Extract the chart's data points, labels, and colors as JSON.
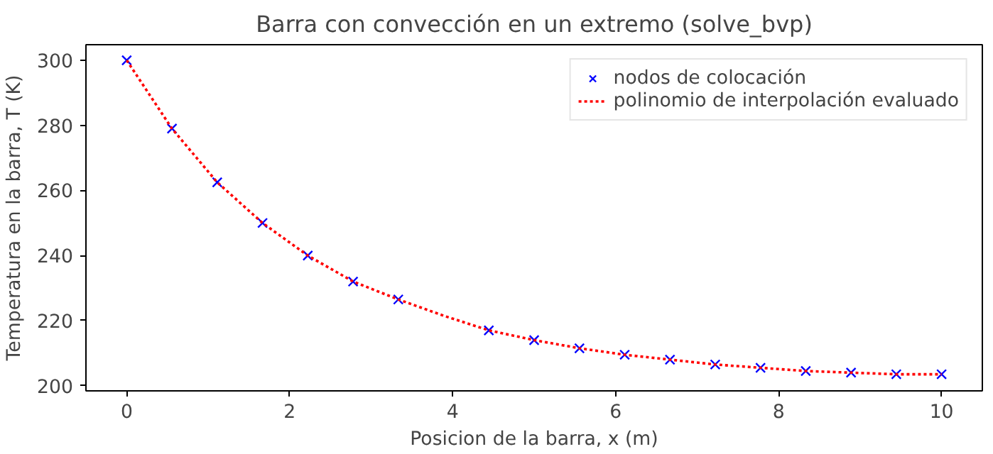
{
  "chart_data": {
    "type": "line",
    "title": "Barra con convección en un extremo (solve_bvp)",
    "xlabel": "Posicion de la barra, x (m)",
    "ylabel": "Temperatura en la barra, T (K)",
    "xlim": [
      -0.5,
      10.5
    ],
    "ylim": [
      198.4,
      304.8
    ],
    "xticks": [
      0,
      2,
      4,
      6,
      8,
      10
    ],
    "yticks": [
      200,
      220,
      240,
      260,
      280,
      300
    ],
    "grid": false,
    "legend": "top right",
    "series": [
      {
        "name": "nodos de colocación",
        "type": "scatter",
        "marker": "cross",
        "color": "#0000ff",
        "x": [
          0,
          0.556,
          1.111,
          1.667,
          2.222,
          2.778,
          3.333,
          4.444,
          5.0,
          5.556,
          6.111,
          6.667,
          7.222,
          7.778,
          8.333,
          8.889,
          9.444,
          10
        ],
        "values": [
          300,
          279,
          262.5,
          250,
          240,
          232,
          226.5,
          217,
          214,
          211.5,
          209.5,
          208,
          206.5,
          205.5,
          204.5,
          204,
          203.5,
          203.5
        ]
      },
      {
        "name": "polinomio de interpolación evaluado",
        "line_style": "dotted",
        "color": "#ff0000",
        "x": [
          0,
          0.556,
          1.111,
          1.667,
          2.222,
          2.778,
          3.333,
          3.889,
          4.444,
          5.0,
          5.556,
          6.111,
          6.667,
          7.222,
          7.778,
          8.333,
          8.889,
          9.444,
          10
        ],
        "values": [
          300,
          279,
          262.5,
          250,
          240,
          232,
          226.5,
          221.5,
          217,
          214,
          211.5,
          209.5,
          208,
          206.5,
          205.5,
          204.5,
          204,
          203.5,
          203.5
        ]
      }
    ]
  }
}
